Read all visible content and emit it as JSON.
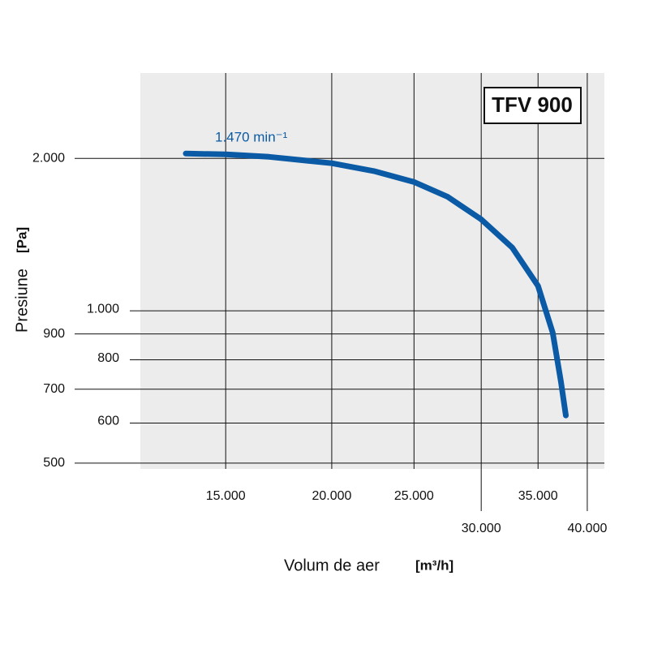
{
  "chart_data": {
    "type": "line",
    "model": "TFV 900",
    "annotation": "1.470 min⁻¹",
    "x_label": "Volum de aer",
    "x_unit": "[m³/h]",
    "y_label": "Presiune",
    "y_unit": "[Pa]",
    "x": [
      13460,
      15000,
      16870,
      20000,
      22490,
      25000,
      27370,
      30000,
      32630,
      35000,
      36420,
      37240,
      37740
    ],
    "series": [
      {
        "color": "#0a5aa5",
        "values": [
          2045,
          2037,
          2015,
          1957,
          1886,
          1797,
          1681,
          1516,
          1333,
          1120,
          905,
          725,
          621
        ]
      }
    ],
    "xlim": [
      11900,
      41900
    ],
    "ylim": [
      487,
      2950
    ],
    "log_x": true,
    "log_y": true,
    "grid": true,
    "xticks": [
      {
        "value": 15000,
        "label": "15.000"
      },
      {
        "value": 20000,
        "label": "20.000"
      },
      {
        "value": 25000,
        "label": "25.000"
      },
      {
        "value": 30000,
        "label": "30.000"
      },
      {
        "value": 35000,
        "label": "35.000"
      },
      {
        "value": 40000,
        "label": "40.000"
      }
    ],
    "yticks": [
      500,
      600,
      700,
      800,
      900,
      {
        "value": 1000,
        "label": "1.000"
      },
      {
        "value": 2000,
        "label": "2.000"
      }
    ]
  }
}
